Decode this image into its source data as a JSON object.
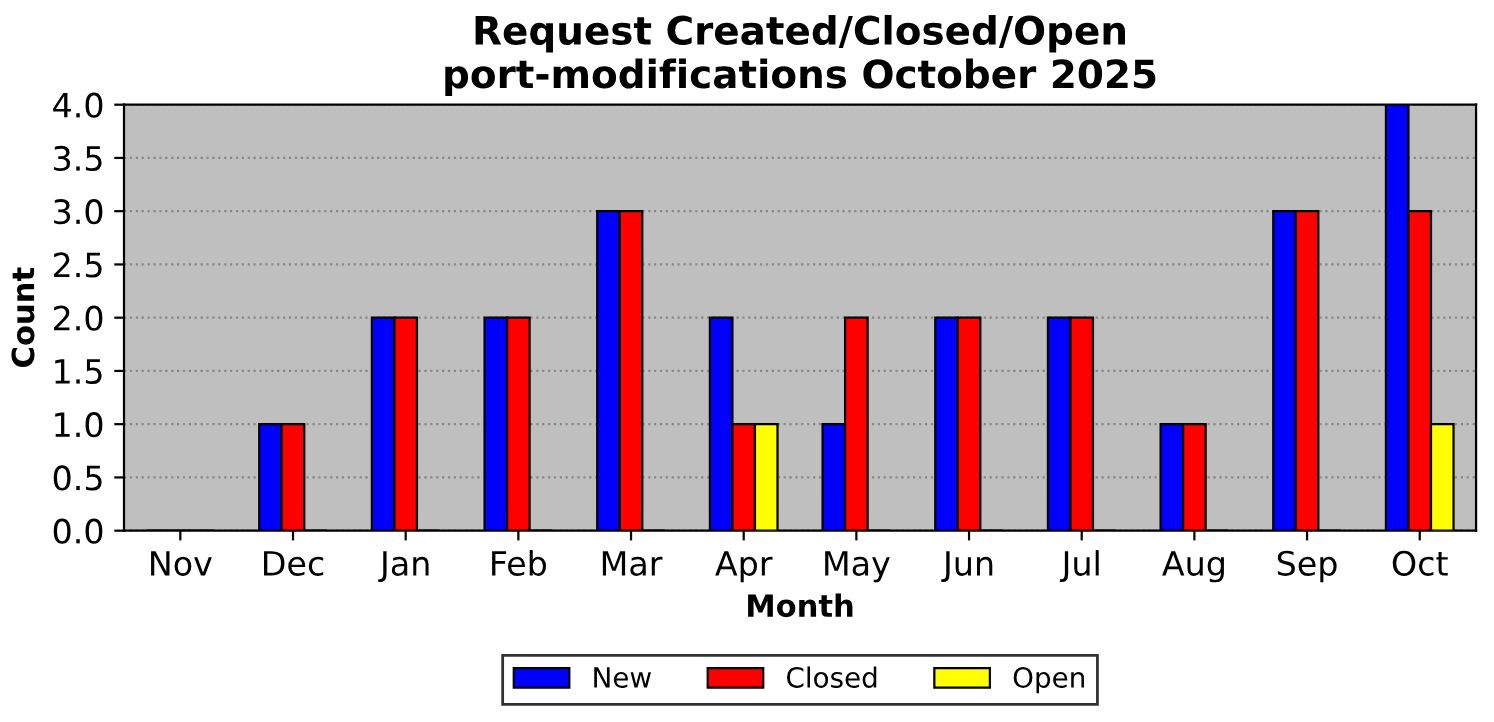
{
  "chart_data": {
    "type": "bar",
    "title": "Request Created/Closed/Open\nport-modifications October 2025",
    "xlabel": "Month",
    "ylabel": "Count",
    "categories": [
      "Nov",
      "Dec",
      "Jan",
      "Feb",
      "Mar",
      "Apr",
      "May",
      "Jun",
      "Jul",
      "Aug",
      "Sep",
      "Oct"
    ],
    "series": [
      {
        "name": "New",
        "color": "#0000ff",
        "values": [
          0,
          1,
          2,
          2,
          3,
          2,
          1,
          2,
          2,
          1,
          3,
          4
        ]
      },
      {
        "name": "Closed",
        "color": "#ff0000",
        "values": [
          0,
          1,
          2,
          2,
          3,
          1,
          2,
          2,
          2,
          1,
          3,
          3
        ]
      },
      {
        "name": "Open",
        "color": "#ffff00",
        "values": [
          0,
          0,
          0,
          0,
          0,
          1,
          0,
          0,
          0,
          0,
          0,
          1
        ]
      }
    ],
    "ylim": [
      0,
      4
    ],
    "yticks": [
      {
        "value": 0,
        "label": "0.0"
      },
      0.5,
      {
        "value": 1,
        "label": "1.0"
      },
      1.5,
      {
        "value": 2,
        "label": "2.0"
      },
      2.5,
      {
        "value": 3,
        "label": "3.0"
      },
      3.5,
      {
        "value": 4,
        "label": "4.0"
      }
    ],
    "grid": "y",
    "legend": "bottom"
  }
}
